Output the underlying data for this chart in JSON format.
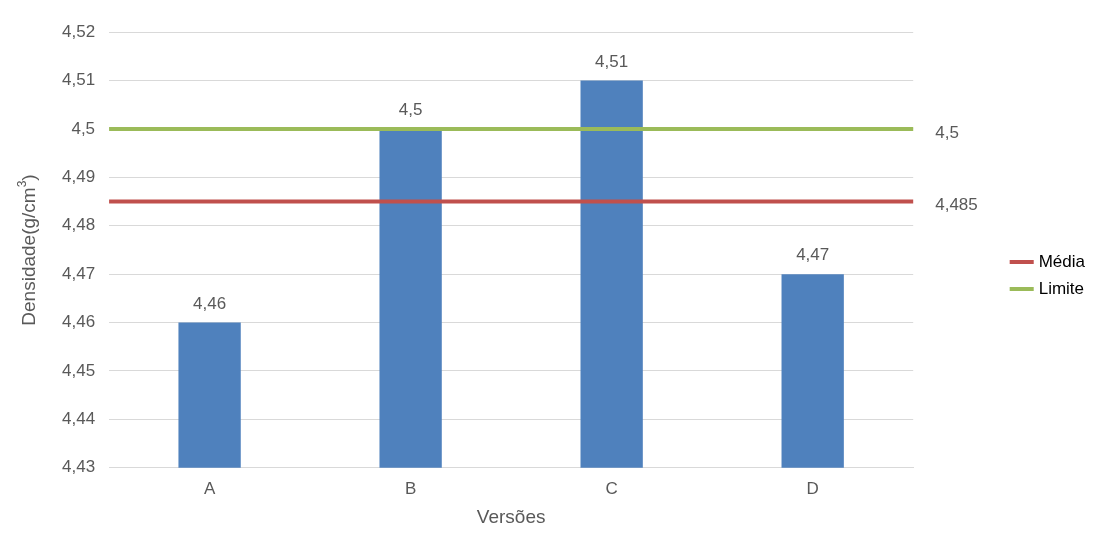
{
  "chart_data": {
    "type": "bar",
    "xlabel": "Versões",
    "ylabel": "Densidade(g/cm$^{3}$)",
    "categories": [
      "A",
      "B",
      "C",
      "D"
    ],
    "values": [
      4.46,
      4.5,
      4.51,
      4.47
    ],
    "color": "#4f81bd",
    "value_labels": [
      "4,46",
      "4,5",
      "4,51",
      "4,47"
    ],
    "ylim": [
      4.43,
      4.52
    ],
    "yticks": [
      {
        "value": 4.43,
        "label": "4,43"
      },
      {
        "value": 4.44,
        "label": "4,44"
      },
      {
        "value": 4.45,
        "label": "4,45"
      },
      {
        "value": 4.46,
        "label": "4,46"
      },
      {
        "value": 4.47,
        "label": "4,47"
      },
      {
        "value": 4.48,
        "label": "4,48"
      },
      {
        "value": 4.49,
        "label": "4,49"
      },
      {
        "value": 4.5,
        "label": "4,5"
      },
      {
        "value": 4.51,
        "label": "4,51"
      },
      {
        "value": 4.52,
        "label": "4,52"
      }
    ],
    "ref_lines": [
      {
        "axis": "y",
        "value": 4.485,
        "label": "Média",
        "color": "#c0504d"
      },
      {
        "axis": "y",
        "value": 4.5,
        "label": "Limite",
        "color": "#9bbb59"
      }
    ],
    "annotations": [
      "4,485",
      "4,5"
    ],
    "grid": "y",
    "legend": "right"
  }
}
